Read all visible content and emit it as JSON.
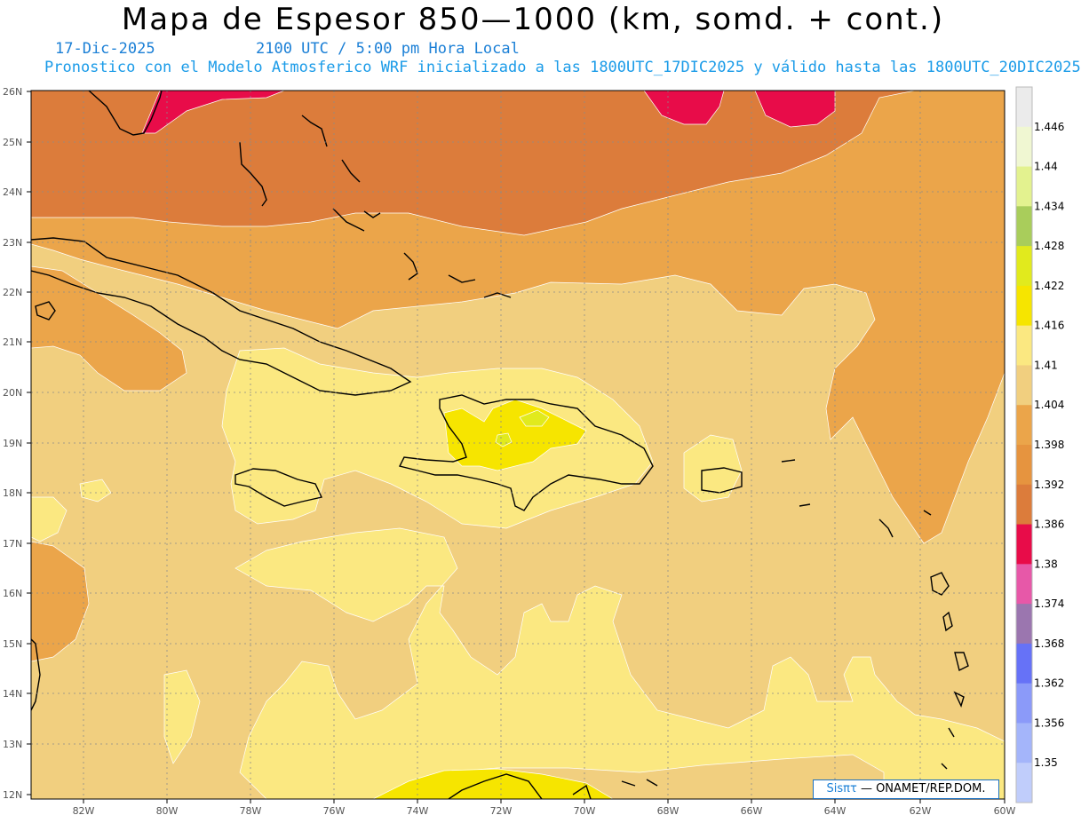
{
  "title": "Mapa de Espesor 850—1000 (km, somd. + cont.)",
  "date": "17-Dic-2025",
  "time": "2100 UTC / 5:00 pm Hora Local",
  "description": "Pronostico con el Modelo Atmosferico WRF inicializado a las 1800UTC_17DIC2025 y válido hasta las  1800UTC_20DIC2025",
  "lat_labels": [
    "26N",
    "25N",
    "24N",
    "23N",
    "22N",
    "21N",
    "20N",
    "19N",
    "18N",
    "17N",
    "16N",
    "15N",
    "14N",
    "13N",
    "12N"
  ],
  "lon_labels": [
    "82W",
    "80W",
    "78W",
    "76W",
    "74W",
    "72W",
    "70W",
    "68W",
    "66W",
    "64W",
    "62W",
    "60W"
  ],
  "colorbar": {
    "labels": [
      "1.446",
      "1.44",
      "1.434",
      "1.428",
      "1.422",
      "1.416",
      "1.41",
      "1.404",
      "1.398",
      "1.392",
      "1.386",
      "1.38",
      "1.374",
      "1.368",
      "1.362",
      "1.356",
      "1.35"
    ],
    "colors": [
      "#ebebeb",
      "#f0f7d2",
      "#e3f28f",
      "#a9cd5b",
      "#e1ea1d",
      "#f6e500",
      "#fbe881",
      "#f1cf7f",
      "#eba54a",
      "#e6943f",
      "#dc7c3b",
      "#e80c49",
      "#e758a8",
      "#9b76af",
      "#6672f7",
      "#8b9af9",
      "#a4b5fa",
      "#c0cdfb"
    ],
    "color_meaning": "thickness (km), shaded + contoured"
  },
  "credit": {
    "brand": "Sisπτ",
    "text": " — ONAMET/REP.DOM."
  }
}
